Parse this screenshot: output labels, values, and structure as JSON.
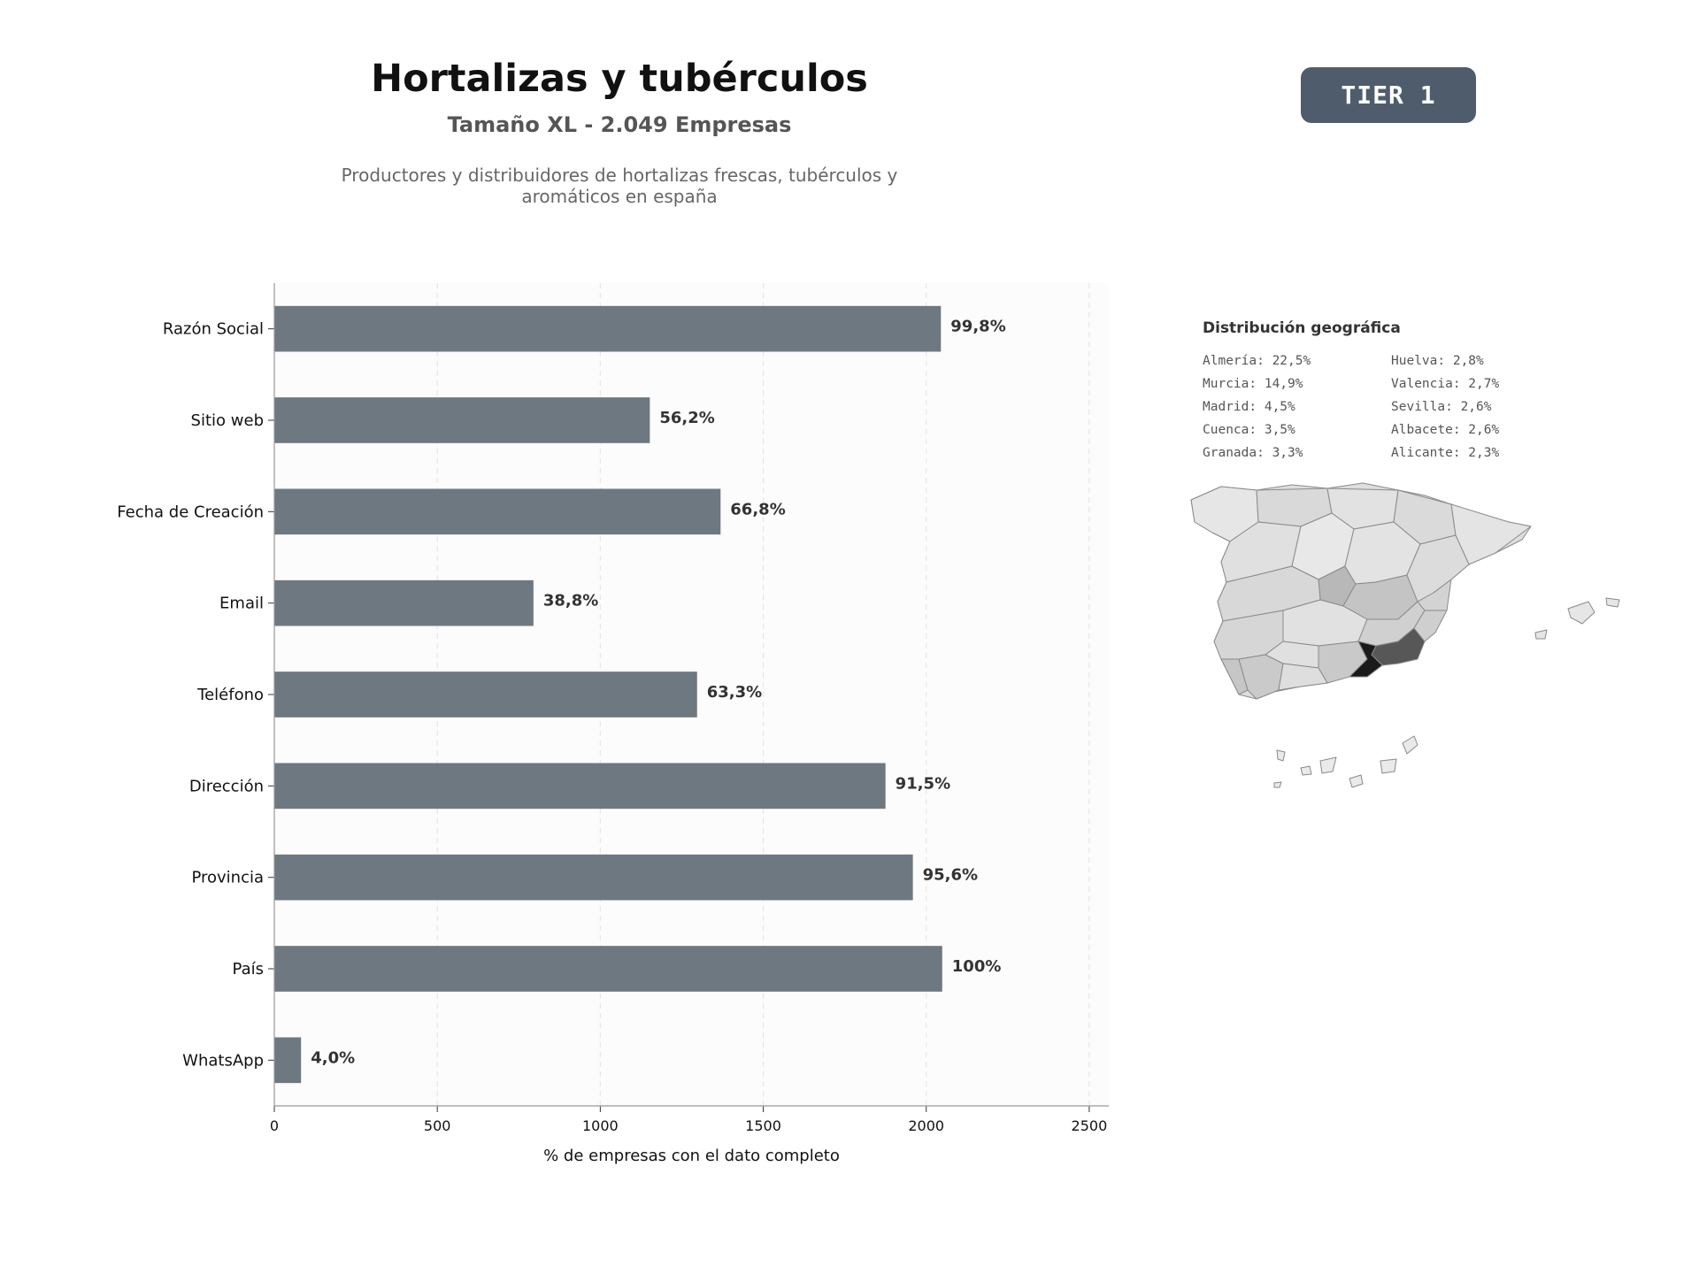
{
  "header": {
    "title": "Hortalizas y tubérculos",
    "subtitle": "Tamaño XL - 2.049 Empresas",
    "description": "Productores y distribuidores de hortalizas frescas, tubérculos y aromáticos en españa",
    "badge": "TIER 1"
  },
  "chart_data": {
    "type": "bar",
    "orientation": "horizontal",
    "categories": [
      "Razón Social",
      "Sitio web",
      "Fecha de Creación",
      "Email",
      "Teléfono",
      "Dirección",
      "Provincia",
      "País",
      "WhatsApp"
    ],
    "values": [
      2045,
      1152,
      1369,
      795,
      1297,
      1875,
      1959,
      2049,
      82
    ],
    "value_labels": [
      "99,8%",
      "56,2%",
      "66,8%",
      "38,8%",
      "63,3%",
      "91,5%",
      "95,6%",
      "100%",
      "4,0%"
    ],
    "xlabel": "% de empresas con el dato completo",
    "xticks": [
      0,
      500,
      1000,
      1500,
      2000,
      2500
    ],
    "xlim": [
      0,
      2560
    ],
    "grid": "vertical dashed",
    "bar_color": "#6e7880"
  },
  "geo": {
    "title": "Distribución geográfica",
    "items": [
      "Almería: 22,5%",
      "Huelva: 2,8%",
      "Murcia: 14,9%",
      "Valencia: 2,7%",
      "Madrid: 4,5%",
      "Sevilla: 2,6%",
      "Cuenca: 3,5%",
      "Albacete: 2,6%",
      "Granada: 3,3%",
      "Alicante: 2,3%"
    ]
  }
}
